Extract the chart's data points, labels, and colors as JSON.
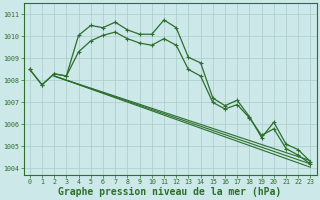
{
  "background_color": "#cce8e8",
  "grid_color": "#aacccc",
  "line_color": "#2d6e2d",
  "xlabel": "Graphe pression niveau de la mer (hPa)",
  "xlabel_fontsize": 7,
  "ylim": [
    1003.7,
    1011.5
  ],
  "xlim": [
    -0.5,
    23.5
  ],
  "yticks": [
    1004,
    1005,
    1006,
    1007,
    1008,
    1009,
    1010,
    1011
  ],
  "xticks": [
    0,
    1,
    2,
    3,
    4,
    5,
    6,
    7,
    8,
    9,
    10,
    11,
    12,
    13,
    14,
    15,
    16,
    17,
    18,
    19,
    20,
    21,
    22,
    23
  ],
  "series1": {
    "x": [
      0,
      1,
      2,
      3,
      4,
      5,
      6,
      7,
      8,
      9,
      10,
      11,
      12,
      13,
      14,
      15,
      16,
      17,
      18,
      19,
      20,
      21,
      22,
      23
    ],
    "y": [
      1008.5,
      1007.8,
      1008.3,
      1008.2,
      1010.05,
      1010.5,
      1010.4,
      1010.65,
      1010.3,
      1010.1,
      1010.1,
      1010.75,
      1010.4,
      1009.05,
      1008.8,
      1007.2,
      1006.85,
      1007.1,
      1006.35,
      1005.4,
      1006.1,
      1005.1,
      1004.85,
      1004.3
    ]
  },
  "series2": {
    "x": [
      0,
      1,
      2,
      3,
      4,
      5,
      6,
      7,
      8,
      9,
      10,
      11,
      12,
      13,
      14,
      15,
      16,
      17,
      18,
      19,
      20,
      21,
      22,
      23
    ],
    "y": [
      1008.5,
      1007.8,
      1008.3,
      1008.2,
      1009.3,
      1009.8,
      1010.05,
      1010.2,
      1009.9,
      1009.7,
      1009.6,
      1009.9,
      1009.6,
      1008.5,
      1008.2,
      1007.0,
      1006.7,
      1006.9,
      1006.3,
      1005.5,
      1005.8,
      1004.9,
      1004.6,
      1004.2
    ]
  },
  "straight_lines": [
    {
      "x": [
        2,
        23
      ],
      "y": [
        1008.2,
        1004.35
      ]
    },
    {
      "x": [
        2,
        23
      ],
      "y": [
        1008.2,
        1004.2
      ]
    },
    {
      "x": [
        2,
        23
      ],
      "y": [
        1008.2,
        1004.05
      ]
    }
  ]
}
